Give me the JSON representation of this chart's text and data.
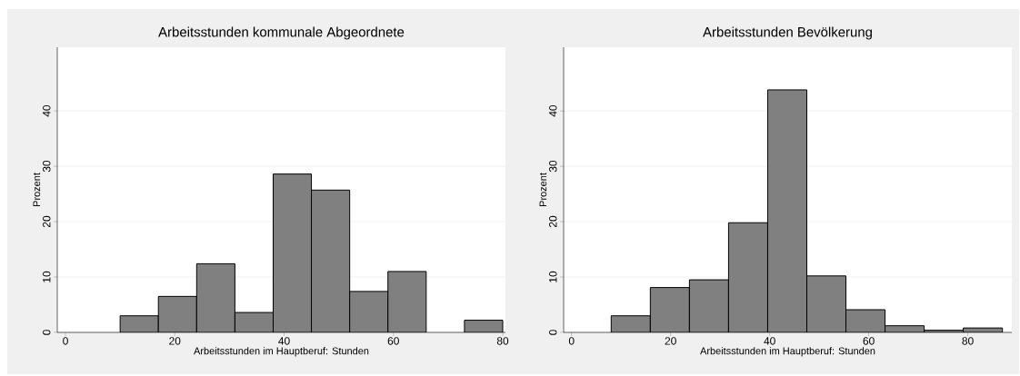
{
  "chart_data": [
    {
      "type": "histogram",
      "title": "Arbeitsstunden kommunale Abgeordnete",
      "xlabel": "Arbeitsstunden im Hauptberuf: Stunden",
      "ylabel": "Prozent",
      "color": "#808080",
      "bins": [
        10,
        17,
        24,
        31,
        38,
        45,
        52,
        59,
        66,
        73,
        80
      ],
      "values": [
        3.0,
        6.5,
        12.4,
        3.6,
        28.6,
        25.7,
        7.4,
        11.0,
        0,
        2.2
      ],
      "xlim": [
        -1.5,
        80.5
      ],
      "ylim": [
        0,
        51.5
      ],
      "xticks": [
        0,
        20,
        40,
        60,
        80
      ],
      "yticks": [
        0,
        10,
        20,
        30,
        40
      ],
      "grid": "y"
    },
    {
      "type": "histogram",
      "title": "Arbeitsstunden Bevölkerung",
      "xlabel": "Arbeitsstunden im Hauptberuf: Stunden",
      "ylabel": "Prozent",
      "color": "#808080",
      "bins": [
        8,
        15.9,
        23.8,
        31.7,
        39.6,
        47.5,
        55.4,
        63.3,
        71.2,
        79.1,
        87
      ],
      "values": [
        3.0,
        8.1,
        9.5,
        19.8,
        43.8,
        10.2,
        4.1,
        1.2,
        0.4,
        0.8
      ],
      "xlim": [
        -1.6,
        88.9
      ],
      "ylim": [
        0,
        51.5
      ],
      "xticks": [
        0,
        20,
        40,
        60,
        80
      ],
      "yticks": [
        0,
        10,
        20,
        30,
        40
      ],
      "grid": "y"
    }
  ]
}
